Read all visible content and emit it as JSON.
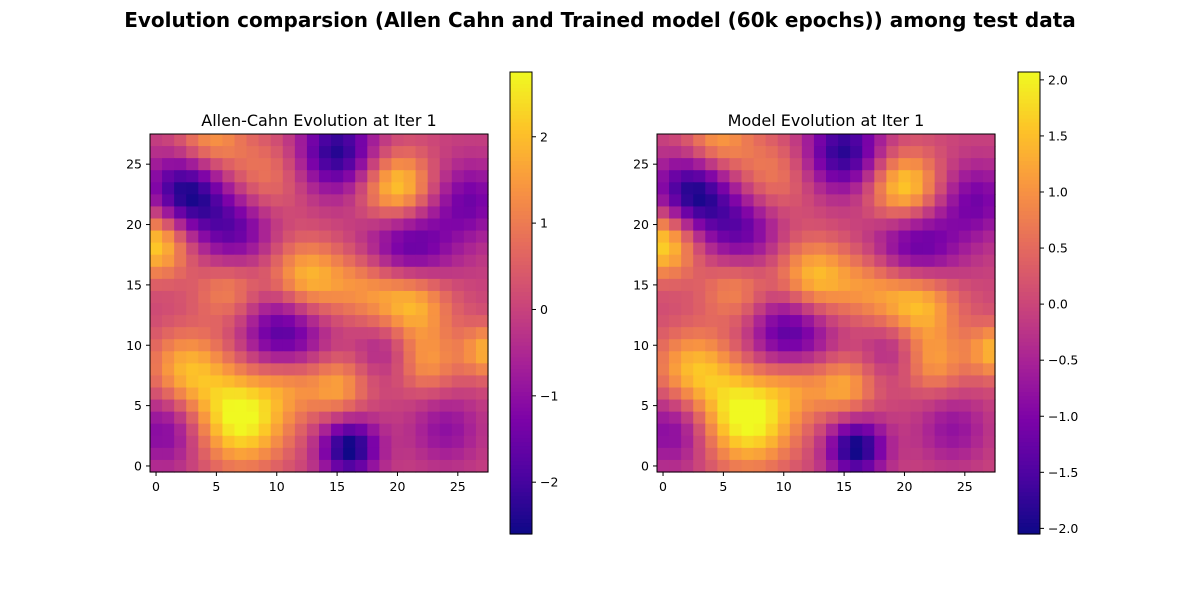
{
  "figure": {
    "suptitle": "Evolution comparsion (Allen Cahn and Trained model (60k epochs)) among test data"
  },
  "chart_data": [
    {
      "type": "heatmap",
      "title": "Allen-Cahn Evolution at Iter 1",
      "colormap": "plasma",
      "grid_size": [
        28,
        28
      ],
      "xticks": [
        0,
        5,
        10,
        15,
        20,
        25
      ],
      "yticks": [
        0,
        5,
        10,
        15,
        20,
        25
      ],
      "xlim": [
        -0.5,
        27.5
      ],
      "ylim": [
        27.5,
        -0.5
      ],
      "colorbar": {
        "vmin": -2.6,
        "vmax": 2.75,
        "ticks": [
          -2,
          -1,
          0,
          1,
          2
        ]
      },
      "field_scale": 1.0,
      "blobs": [
        [
          2.5,
          4.5,
          -2.6,
          2.3
        ],
        [
          6.5,
          7.5,
          -1.6,
          2.2
        ],
        [
          15.0,
          1.0,
          -2.4,
          2.3
        ],
        [
          21.0,
          9.0,
          -2.0,
          2.6
        ],
        [
          26.0,
          5.0,
          -1.4,
          2.2
        ],
        [
          10.5,
          16.0,
          -2.0,
          2.4
        ],
        [
          16.0,
          25.5,
          -2.7,
          1.7
        ],
        [
          1.0,
          24.0,
          -1.4,
          2.2
        ],
        [
          24.0,
          24.0,
          -1.0,
          2.0
        ],
        [
          19.0,
          17.0,
          -0.9,
          1.8
        ],
        [
          0.0,
          8.5,
          2.4,
          2.0
        ],
        [
          20.0,
          4.0,
          2.4,
          2.1
        ],
        [
          12.5,
          11.5,
          2.0,
          2.2
        ],
        [
          21.0,
          13.5,
          2.3,
          2.4
        ],
        [
          7.0,
          23.0,
          2.9,
          2.8
        ],
        [
          2.5,
          19.0,
          1.8,
          2.3
        ],
        [
          15.0,
          20.5,
          1.6,
          1.8
        ],
        [
          27.5,
          17.5,
          1.8,
          1.6
        ],
        [
          6.0,
          12.5,
          1.2,
          2.0
        ],
        [
          9.0,
          3.0,
          1.0,
          2.3
        ],
        [
          22.5,
          18.5,
          1.3,
          1.8
        ],
        [
          17.0,
          12.0,
          1.0,
          2.0
        ],
        [
          4.5,
          0.0,
          1.5,
          2.0
        ],
        [
          11.0,
          20.0,
          1.0,
          1.8
        ]
      ]
    },
    {
      "type": "heatmap",
      "title": "Model Evolution at Iter 1",
      "colormap": "plasma",
      "grid_size": [
        28,
        28
      ],
      "xticks": [
        0,
        5,
        10,
        15,
        20,
        25
      ],
      "yticks": [
        0,
        5,
        10,
        15,
        20,
        25
      ],
      "xlim": [
        -0.5,
        27.5
      ],
      "ylim": [
        27.5,
        -0.5
      ],
      "colorbar": {
        "vmin": -2.05,
        "vmax": 2.07,
        "ticks": [
          -2.0,
          -1.5,
          -1.0,
          -0.5,
          0.0,
          0.5,
          1.0,
          1.5,
          2.0
        ]
      },
      "field_scale": 0.78,
      "blobs": [
        [
          2.5,
          4.5,
          -2.6,
          2.3
        ],
        [
          6.5,
          7.5,
          -1.6,
          2.2
        ],
        [
          15.0,
          1.0,
          -2.4,
          2.3
        ],
        [
          21.0,
          9.0,
          -2.0,
          2.6
        ],
        [
          26.0,
          5.0,
          -1.4,
          2.2
        ],
        [
          10.5,
          16.0,
          -2.0,
          2.4
        ],
        [
          16.0,
          25.5,
          -2.7,
          1.7
        ],
        [
          1.0,
          24.0,
          -1.4,
          2.2
        ],
        [
          24.0,
          24.0,
          -1.0,
          2.0
        ],
        [
          19.0,
          17.0,
          -0.9,
          1.8
        ],
        [
          0.0,
          8.5,
          2.4,
          2.0
        ],
        [
          20.0,
          4.0,
          2.4,
          2.1
        ],
        [
          12.5,
          11.5,
          2.0,
          2.2
        ],
        [
          21.0,
          13.5,
          2.3,
          2.4
        ],
        [
          7.0,
          23.0,
          2.9,
          2.8
        ],
        [
          2.5,
          19.0,
          1.8,
          2.3
        ],
        [
          15.0,
          20.5,
          1.6,
          1.8
        ],
        [
          27.5,
          17.5,
          1.8,
          1.6
        ],
        [
          6.0,
          12.5,
          1.2,
          2.0
        ],
        [
          9.0,
          3.0,
          1.0,
          2.3
        ],
        [
          22.5,
          18.5,
          1.3,
          1.8
        ],
        [
          17.0,
          12.0,
          1.0,
          2.0
        ],
        [
          4.5,
          0.0,
          1.5,
          2.0
        ],
        [
          11.0,
          20.0,
          1.0,
          1.8
        ]
      ]
    }
  ]
}
